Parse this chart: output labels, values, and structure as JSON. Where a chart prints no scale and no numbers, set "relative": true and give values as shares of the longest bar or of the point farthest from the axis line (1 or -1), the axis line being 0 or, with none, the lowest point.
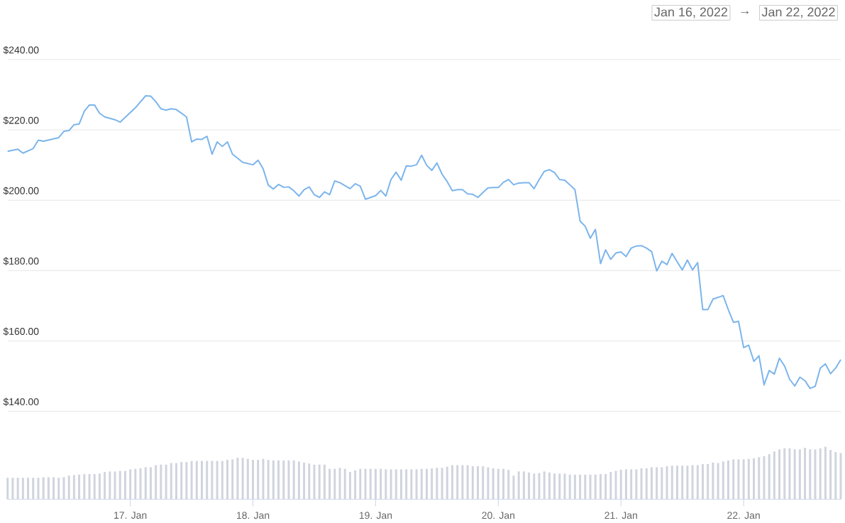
{
  "chart_data": [
    {
      "type": "line",
      "color": "#7cb5ec",
      "line_style": "solid",
      "marker": "none",
      "grid": "y",
      "xlim": [
        "2022-01-16T00:00",
        "2022-01-22T19:00"
      ],
      "ylim": [
        140,
        240
      ],
      "yticks": [
        {
          "value": 140,
          "label": "$140.00"
        },
        {
          "value": 160,
          "label": "$160.00"
        },
        {
          "value": 180,
          "label": "$180.00"
        },
        {
          "value": 200,
          "label": "$200.00"
        },
        {
          "value": 220,
          "label": "$220.00"
        },
        {
          "value": 240,
          "label": "$240.00"
        }
      ],
      "annotations": [
        "Jan 16, 2022",
        "→",
        "Jan 22, 2022"
      ],
      "x": [
        "2022-01-16T00:00",
        "2022-01-16T02:00",
        "2022-01-16T03:00",
        "2022-01-16T05:00",
        "2022-01-16T06:00",
        "2022-01-16T07:00",
        "2022-01-16T10:00",
        "2022-01-16T11:00",
        "2022-01-16T12:00",
        "2022-01-16T13:00",
        "2022-01-16T14:00",
        "2022-01-16T15:00",
        "2022-01-16T16:00",
        "2022-01-16T17:00",
        "2022-01-16T18:00",
        "2022-01-16T19:00",
        "2022-01-16T21:00",
        "2022-01-16T22:00",
        "2022-01-17T01:00",
        "2022-01-17T03:00",
        "2022-01-17T04:00",
        "2022-01-17T05:00",
        "2022-01-17T06:00",
        "2022-01-17T07:00",
        "2022-01-17T08:00",
        "2022-01-17T09:00",
        "2022-01-17T11:00",
        "2022-01-17T12:00",
        "2022-01-17T13:00",
        "2022-01-17T14:00",
        "2022-01-17T15:00",
        "2022-01-17T16:00",
        "2022-01-17T17:00",
        "2022-01-17T18:00",
        "2022-01-17T19:00",
        "2022-01-17T20:00",
        "2022-01-17T22:00",
        "2022-01-18T00:00",
        "2022-01-18T01:00",
        "2022-01-18T02:00",
        "2022-01-18T03:00",
        "2022-01-18T04:00",
        "2022-01-18T05:00",
        "2022-01-18T06:00",
        "2022-01-18T07:00",
        "2022-01-18T08:00",
        "2022-01-18T09:00",
        "2022-01-18T10:00",
        "2022-01-18T11:00",
        "2022-01-18T12:00",
        "2022-01-18T13:00",
        "2022-01-18T14:00",
        "2022-01-18T15:00",
        "2022-01-18T16:00",
        "2022-01-18T17:00",
        "2022-01-18T19:00",
        "2022-01-18T20:00",
        "2022-01-18T21:00",
        "2022-01-18T22:00",
        "2022-01-19T00:00",
        "2022-01-19T01:00",
        "2022-01-19T02:00",
        "2022-01-19T03:00",
        "2022-01-19T04:00",
        "2022-01-19T05:00",
        "2022-01-19T06:00",
        "2022-01-19T07:00",
        "2022-01-19T08:00",
        "2022-01-19T09:00",
        "2022-01-19T10:00",
        "2022-01-19T11:00",
        "2022-01-19T12:00",
        "2022-01-19T13:00",
        "2022-01-19T14:00",
        "2022-01-19T15:00",
        "2022-01-19T16:00",
        "2022-01-19T17:00",
        "2022-01-19T18:00",
        "2022-01-19T19:00",
        "2022-01-19T20:00",
        "2022-01-19T21:00",
        "2022-01-19T22:00",
        "2022-01-19T23:00",
        "2022-01-20T00:00",
        "2022-01-20T01:00",
        "2022-01-20T02:00",
        "2022-01-20T03:00",
        "2022-01-20T04:00",
        "2022-01-20T05:00",
        "2022-01-20T06:00",
        "2022-01-20T07:00",
        "2022-01-20T08:00",
        "2022-01-20T09:00",
        "2022-01-20T10:00",
        "2022-01-20T11:00",
        "2022-01-20T12:00",
        "2022-01-20T13:00",
        "2022-01-20T14:00",
        "2022-01-20T15:00",
        "2022-01-20T16:00",
        "2022-01-20T17:00",
        "2022-01-20T18:00",
        "2022-01-20T19:00",
        "2022-01-20T20:00",
        "2022-01-20T21:00",
        "2022-01-20T22:00",
        "2022-01-20T23:00",
        "2022-01-21T00:00",
        "2022-01-21T01:00",
        "2022-01-21T02:00",
        "2022-01-21T03:00",
        "2022-01-21T04:00",
        "2022-01-21T05:00",
        "2022-01-21T06:00",
        "2022-01-21T07:00",
        "2022-01-21T08:00",
        "2022-01-21T09:00",
        "2022-01-21T10:00",
        "2022-01-21T11:00",
        "2022-01-21T12:00",
        "2022-01-21T13:00",
        "2022-01-21T14:00",
        "2022-01-21T15:00",
        "2022-01-21T16:00",
        "2022-01-21T17:00",
        "2022-01-21T18:00",
        "2022-01-21T20:00",
        "2022-01-21T21:00",
        "2022-01-21T22:00",
        "2022-01-21T23:00",
        "2022-01-22T00:00",
        "2022-01-22T01:00",
        "2022-01-22T02:00",
        "2022-01-22T03:00",
        "2022-01-22T04:00",
        "2022-01-22T05:00",
        "2022-01-22T06:00",
        "2022-01-22T07:00",
        "2022-01-22T08:00",
        "2022-01-22T09:00",
        "2022-01-22T10:00",
        "2022-01-22T11:00",
        "2022-01-22T12:00",
        "2022-01-22T13:00",
        "2022-01-22T14:00",
        "2022-01-22T15:00",
        "2022-01-22T16:00",
        "2022-01-22T17:00",
        "2022-01-22T18:00",
        "2022-01-22T19:00"
      ],
      "values": [
        213.9,
        214.5,
        213.4,
        214.7,
        217.1,
        216.8,
        217.8,
        219.6,
        219.8,
        221.5,
        221.7,
        225.3,
        227.1,
        227.1,
        224.7,
        223.7,
        222.9,
        222.2,
        226.3,
        229.7,
        229.6,
        228.0,
        226.0,
        225.6,
        226.0,
        225.8,
        223.7,
        216.6,
        217.4,
        217.3,
        218.2,
        213.1,
        216.6,
        215.3,
        216.6,
        213.1,
        210.8,
        210.1,
        211.4,
        208.9,
        204.3,
        203.2,
        204.5,
        203.7,
        203.8,
        202.7,
        201.2,
        203.0,
        203.8,
        201.6,
        200.8,
        202.4,
        201.6,
        205.5,
        205.0,
        203.3,
        204.7,
        204.0,
        200.3,
        201.3,
        202.8,
        201.2,
        205.9,
        208.0,
        205.7,
        209.8,
        209.7,
        210.1,
        212.8,
        209.9,
        208.5,
        210.6,
        207.4,
        205.3,
        202.7,
        203.0,
        203.0,
        201.8,
        201.7,
        200.8,
        202.2,
        203.5,
        203.6,
        203.6,
        205.1,
        205.9,
        204.4,
        204.9,
        205.0,
        205.0,
        203.3,
        205.9,
        208.2,
        208.7,
        207.9,
        205.9,
        205.7,
        204.4,
        203.0,
        194.1,
        192.6,
        189.2,
        191.7,
        182.0,
        185.9,
        183.2,
        185.0,
        185.3,
        184.0,
        186.4,
        187.0,
        187.1,
        186.4,
        185.4,
        179.9,
        182.7,
        181.7,
        184.9,
        182.5,
        180.2,
        183.0,
        180.2,
        182.3,
        168.9,
        168.9,
        171.9,
        172.9,
        168.9,
        165.3,
        165.6,
        158.1,
        158.8,
        154.2,
        155.8,
        147.5,
        151.6,
        150.6,
        155.1,
        152.9,
        149.1,
        147.2,
        149.7,
        148.7,
        146.5,
        147.1,
        152.3,
        153.5,
        150.7,
        152.3,
        154.7
      ]
    },
    {
      "type": "bar",
      "relative": true,
      "color": "#d0d4de",
      "xlim": [
        "2022-01-16T00:00",
        "2022-01-22T19:00"
      ],
      "xticks": [
        {
          "value": "2022-01-17T00:00",
          "label": "17. Jan"
        },
        {
          "value": "2022-01-18T00:00",
          "label": "18. Jan"
        },
        {
          "value": "2022-01-19T00:00",
          "label": "19. Jan"
        },
        {
          "value": "2022-01-20T00:00",
          "label": "20. Jan"
        },
        {
          "value": "2022-01-21T00:00",
          "label": "21. Jan"
        },
        {
          "value": "2022-01-22T00:00",
          "label": "22. Jan"
        }
      ],
      "x": [
        "2022-01-16T00:00",
        "2022-01-16T01:00",
        "2022-01-16T02:00",
        "2022-01-16T03:00",
        "2022-01-16T04:00",
        "2022-01-16T05:00",
        "2022-01-16T06:00",
        "2022-01-16T07:00",
        "2022-01-16T08:00",
        "2022-01-16T09:00",
        "2022-01-16T10:00",
        "2022-01-16T11:00",
        "2022-01-16T12:00",
        "2022-01-16T13:00",
        "2022-01-16T14:00",
        "2022-01-16T15:00",
        "2022-01-16T16:00",
        "2022-01-16T17:00",
        "2022-01-16T18:00",
        "2022-01-16T19:00",
        "2022-01-16T20:00",
        "2022-01-16T21:00",
        "2022-01-16T22:00",
        "2022-01-16T23:00",
        "2022-01-17T00:00",
        "2022-01-17T01:00",
        "2022-01-17T02:00",
        "2022-01-17T03:00",
        "2022-01-17T04:00",
        "2022-01-17T05:00",
        "2022-01-17T06:00",
        "2022-01-17T07:00",
        "2022-01-17T08:00",
        "2022-01-17T09:00",
        "2022-01-17T10:00",
        "2022-01-17T11:00",
        "2022-01-17T12:00",
        "2022-01-17T13:00",
        "2022-01-17T14:00",
        "2022-01-17T15:00",
        "2022-01-17T16:00",
        "2022-01-17T17:00",
        "2022-01-17T18:00",
        "2022-01-17T19:00",
        "2022-01-17T20:00",
        "2022-01-17T21:00",
        "2022-01-17T22:00",
        "2022-01-17T23:00",
        "2022-01-18T00:00",
        "2022-01-18T01:00",
        "2022-01-18T02:00",
        "2022-01-18T03:00",
        "2022-01-18T04:00",
        "2022-01-18T05:00",
        "2022-01-18T06:00",
        "2022-01-18T07:00",
        "2022-01-18T08:00",
        "2022-01-18T09:00",
        "2022-01-18T10:00",
        "2022-01-18T11:00",
        "2022-01-18T12:00",
        "2022-01-18T13:00",
        "2022-01-18T14:00",
        "2022-01-18T15:00",
        "2022-01-18T16:00",
        "2022-01-18T17:00",
        "2022-01-18T18:00",
        "2022-01-18T19:00",
        "2022-01-18T20:00",
        "2022-01-18T21:00",
        "2022-01-18T22:00",
        "2022-01-18T23:00",
        "2022-01-19T00:00",
        "2022-01-19T01:00",
        "2022-01-19T02:00",
        "2022-01-19T03:00",
        "2022-01-19T04:00",
        "2022-01-19T05:00",
        "2022-01-19T06:00",
        "2022-01-19T07:00",
        "2022-01-19T08:00",
        "2022-01-19T09:00",
        "2022-01-19T10:00",
        "2022-01-19T11:00",
        "2022-01-19T12:00",
        "2022-01-19T13:00",
        "2022-01-19T14:00",
        "2022-01-19T15:00",
        "2022-01-19T16:00",
        "2022-01-19T17:00",
        "2022-01-19T18:00",
        "2022-01-19T19:00",
        "2022-01-19T20:00",
        "2022-01-19T21:00",
        "2022-01-19T22:00",
        "2022-01-19T23:00",
        "2022-01-20T00:00",
        "2022-01-20T01:00",
        "2022-01-20T02:00",
        "2022-01-20T03:00",
        "2022-01-20T04:00",
        "2022-01-20T05:00",
        "2022-01-20T06:00",
        "2022-01-20T07:00",
        "2022-01-20T08:00",
        "2022-01-20T09:00",
        "2022-01-20T10:00",
        "2022-01-20T11:00",
        "2022-01-20T12:00",
        "2022-01-20T13:00",
        "2022-01-20T14:00",
        "2022-01-20T15:00",
        "2022-01-20T16:00",
        "2022-01-20T17:00",
        "2022-01-20T18:00",
        "2022-01-20T19:00",
        "2022-01-20T20:00",
        "2022-01-20T21:00",
        "2022-01-20T22:00",
        "2022-01-20T23:00",
        "2022-01-21T00:00",
        "2022-01-21T01:00",
        "2022-01-21T02:00",
        "2022-01-21T03:00",
        "2022-01-21T04:00",
        "2022-01-21T05:00",
        "2022-01-21T06:00",
        "2022-01-21T07:00",
        "2022-01-21T08:00",
        "2022-01-21T09:00",
        "2022-01-21T10:00",
        "2022-01-21T11:00",
        "2022-01-21T12:00",
        "2022-01-21T13:00",
        "2022-01-21T14:00",
        "2022-01-21T15:00",
        "2022-01-21T16:00",
        "2022-01-21T17:00",
        "2022-01-21T18:00",
        "2022-01-21T19:00",
        "2022-01-21T20:00",
        "2022-01-21T21:00",
        "2022-01-21T22:00",
        "2022-01-21T23:00",
        "2022-01-22T00:00",
        "2022-01-22T01:00",
        "2022-01-22T02:00",
        "2022-01-22T03:00",
        "2022-01-22T04:00",
        "2022-01-22T05:00",
        "2022-01-22T06:00",
        "2022-01-22T07:00",
        "2022-01-22T08:00",
        "2022-01-22T09:00",
        "2022-01-22T10:00",
        "2022-01-22T11:00",
        "2022-01-22T12:00",
        "2022-01-22T13:00",
        "2022-01-22T14:00",
        "2022-01-22T15:00",
        "2022-01-22T16:00",
        "2022-01-22T17:00",
        "2022-01-22T18:00",
        "2022-01-22T19:00"
      ],
      "values": [
        0.41,
        0.41,
        0.41,
        0.41,
        0.41,
        0.41,
        0.41,
        0.42,
        0.42,
        0.42,
        0.41,
        0.42,
        0.45,
        0.46,
        0.47,
        0.48,
        0.48,
        0.48,
        0.49,
        0.52,
        0.53,
        0.53,
        0.54,
        0.54,
        0.57,
        0.58,
        0.59,
        0.61,
        0.61,
        0.65,
        0.66,
        0.66,
        0.69,
        0.69,
        0.71,
        0.71,
        0.73,
        0.73,
        0.73,
        0.73,
        0.73,
        0.73,
        0.73,
        0.75,
        0.76,
        0.79,
        0.79,
        0.77,
        0.75,
        0.75,
        0.77,
        0.75,
        0.74,
        0.74,
        0.74,
        0.74,
        0.74,
        0.72,
        0.7,
        0.68,
        0.66,
        0.66,
        0.66,
        0.58,
        0.58,
        0.6,
        0.58,
        0.52,
        0.55,
        0.58,
        0.58,
        0.58,
        0.58,
        0.58,
        0.57,
        0.57,
        0.57,
        0.57,
        0.57,
        0.57,
        0.57,
        0.58,
        0.58,
        0.59,
        0.6,
        0.6,
        0.62,
        0.65,
        0.65,
        0.65,
        0.65,
        0.63,
        0.63,
        0.63,
        0.61,
        0.59,
        0.58,
        0.58,
        0.56,
        0.45,
        0.53,
        0.53,
        0.51,
        0.49,
        0.5,
        0.53,
        0.51,
        0.49,
        0.49,
        0.49,
        0.47,
        0.47,
        0.47,
        0.47,
        0.47,
        0.47,
        0.48,
        0.48,
        0.52,
        0.54,
        0.56,
        0.57,
        0.57,
        0.57,
        0.59,
        0.59,
        0.61,
        0.61,
        0.61,
        0.63,
        0.64,
        0.64,
        0.64,
        0.64,
        0.65,
        0.65,
        0.67,
        0.67,
        0.7,
        0.69,
        0.72,
        0.74,
        0.76,
        0.76,
        0.76,
        0.77,
        0.78,
        0.8,
        0.82,
        0.86,
        0.91,
        0.95,
        0.97,
        0.97,
        0.95,
        0.95,
        0.98,
        0.95,
        0.95,
        0.97,
        1.0,
        0.94,
        0.9,
        0.88
      ]
    }
  ]
}
